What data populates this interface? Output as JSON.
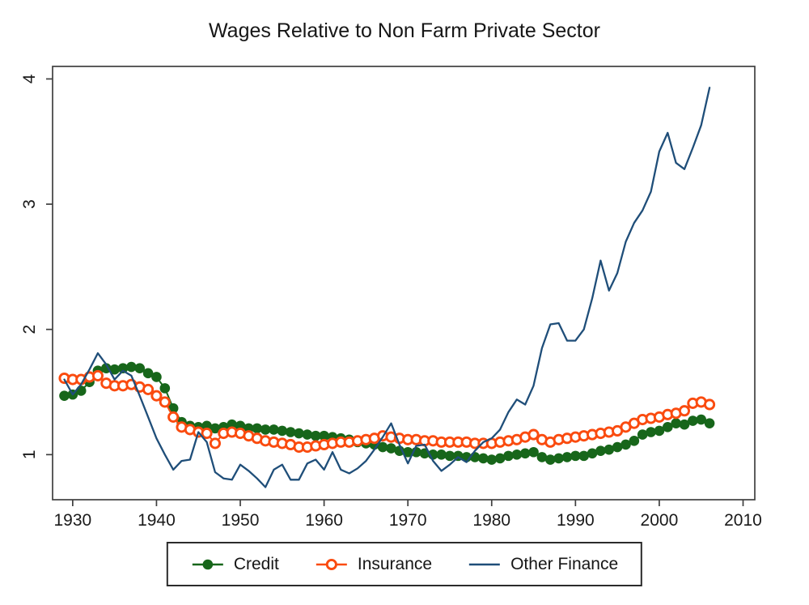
{
  "page": {
    "background": "#ffffff"
  },
  "style": {
    "frame_color": "#3f3f3f",
    "tick_color": "#3f3f3f",
    "text_color": "#1a1a1a",
    "legend_border_color": "#2b2b2b"
  },
  "chart_data": {
    "type": "line",
    "title": "Wages Relative to Non Farm Private Sector",
    "xlabel": "",
    "ylabel": "",
    "grid": false,
    "legend_position": "bottom-center",
    "xlim": [
      1927.6,
      2011.4
    ],
    "ylim": [
      0.64,
      4.1
    ],
    "x_ticks": [
      1930,
      1940,
      1950,
      1960,
      1970,
      1980,
      1990,
      2000,
      2010
    ],
    "y_ticks": [
      1,
      2,
      3,
      4
    ],
    "x": [
      1929,
      1930,
      1931,
      1932,
      1933,
      1934,
      1935,
      1936,
      1937,
      1938,
      1939,
      1940,
      1941,
      1942,
      1943,
      1944,
      1945,
      1946,
      1947,
      1948,
      1949,
      1950,
      1951,
      1952,
      1953,
      1954,
      1955,
      1956,
      1957,
      1958,
      1959,
      1960,
      1961,
      1962,
      1963,
      1964,
      1965,
      1966,
      1967,
      1968,
      1969,
      1970,
      1971,
      1972,
      1973,
      1974,
      1975,
      1976,
      1977,
      1978,
      1979,
      1980,
      1981,
      1982,
      1983,
      1984,
      1985,
      1986,
      1987,
      1988,
      1989,
      1990,
      1991,
      1992,
      1993,
      1994,
      1995,
      1996,
      1997,
      1998,
      1999,
      2000,
      2001,
      2002,
      2003,
      2004,
      2005,
      2006
    ],
    "series": [
      {
        "name": "Credit",
        "marker": "filled-circle",
        "color": "#17661a",
        "values": [
          1.47,
          1.48,
          1.51,
          1.58,
          1.67,
          1.69,
          1.68,
          1.69,
          1.7,
          1.69,
          1.65,
          1.62,
          1.53,
          1.37,
          1.26,
          1.23,
          1.22,
          1.23,
          1.21,
          1.22,
          1.24,
          1.23,
          1.21,
          1.21,
          1.2,
          1.2,
          1.19,
          1.18,
          1.17,
          1.16,
          1.15,
          1.15,
          1.14,
          1.13,
          1.12,
          1.1,
          1.09,
          1.08,
          1.06,
          1.05,
          1.03,
          1.02,
          1.02,
          1.01,
          1.0,
          1.0,
          0.99,
          0.99,
          0.98,
          0.98,
          0.97,
          0.96,
          0.97,
          0.99,
          1.0,
          1.01,
          1.02,
          0.98,
          0.96,
          0.97,
          0.98,
          0.99,
          0.99,
          1.01,
          1.03,
          1.04,
          1.06,
          1.08,
          1.11,
          1.16,
          1.18,
          1.19,
          1.22,
          1.25,
          1.24,
          1.27,
          1.28,
          1.25
        ]
      },
      {
        "name": "Insurance",
        "marker": "open-circle",
        "color": "#fa4b0f",
        "values": [
          1.61,
          1.6,
          1.6,
          1.62,
          1.63,
          1.57,
          1.55,
          1.55,
          1.56,
          1.54,
          1.52,
          1.47,
          1.42,
          1.3,
          1.22,
          1.2,
          1.18,
          1.17,
          1.09,
          1.17,
          1.18,
          1.17,
          1.15,
          1.13,
          1.11,
          1.1,
          1.09,
          1.08,
          1.06,
          1.06,
          1.07,
          1.08,
          1.09,
          1.1,
          1.1,
          1.11,
          1.12,
          1.13,
          1.15,
          1.14,
          1.13,
          1.12,
          1.12,
          1.11,
          1.11,
          1.1,
          1.1,
          1.1,
          1.1,
          1.09,
          1.09,
          1.09,
          1.1,
          1.11,
          1.12,
          1.14,
          1.16,
          1.12,
          1.1,
          1.12,
          1.13,
          1.14,
          1.15,
          1.16,
          1.17,
          1.18,
          1.19,
          1.22,
          1.25,
          1.28,
          1.29,
          1.3,
          1.32,
          1.33,
          1.35,
          1.41,
          1.42,
          1.4
        ]
      },
      {
        "name": "Other Finance",
        "marker": "none",
        "color": "#1f4e79",
        "values": [
          1.6,
          1.48,
          1.56,
          1.68,
          1.81,
          1.72,
          1.6,
          1.67,
          1.63,
          1.47,
          1.3,
          1.13,
          1.0,
          0.88,
          0.95,
          0.96,
          1.18,
          1.1,
          0.86,
          0.81,
          0.8,
          0.92,
          0.87,
          0.81,
          0.74,
          0.88,
          0.92,
          0.8,
          0.8,
          0.93,
          0.96,
          0.88,
          1.02,
          0.88,
          0.85,
          0.89,
          0.95,
          1.04,
          1.14,
          1.25,
          1.08,
          0.93,
          1.07,
          1.08,
          0.95,
          0.87,
          0.92,
          0.98,
          0.94,
          1.03,
          1.1,
          1.13,
          1.2,
          1.34,
          1.44,
          1.4,
          1.55,
          1.85,
          2.04,
          2.05,
          1.91,
          1.91,
          2.0,
          2.25,
          2.55,
          2.31,
          2.45,
          2.7,
          2.85,
          2.95,
          3.1,
          3.42,
          3.57,
          3.33,
          3.28,
          3.45,
          3.63,
          3.93
        ]
      }
    ]
  }
}
